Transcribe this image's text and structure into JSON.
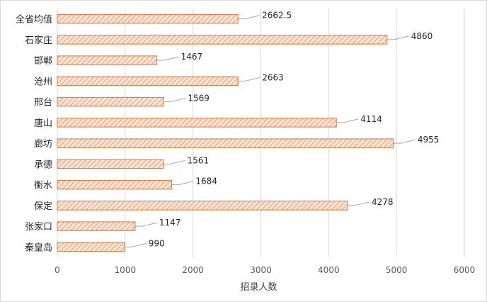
{
  "chart_data": {
    "type": "bar",
    "orientation": "horizontal",
    "categories": [
      "全省均值",
      "石家庄",
      "邯郸",
      "沧州",
      "邢台",
      "唐山",
      "廊坊",
      "承德",
      "衡水",
      "保定",
      "张家口",
      "秦皇岛"
    ],
    "values": [
      2662.5,
      4860,
      1467,
      2663,
      1569,
      4114,
      4955,
      1561,
      1684,
      4278,
      1147,
      990
    ],
    "data_labels": [
      "2662.5",
      "4860",
      "1467",
      "2663",
      "1569",
      "4114",
      "4955",
      "1561",
      "1684",
      "4278",
      "1147",
      "990"
    ],
    "xlabel": "招录人数",
    "ylabel": "",
    "xlim": [
      0,
      6000
    ],
    "x_ticks": [
      0,
      1000,
      2000,
      3000,
      4000,
      5000,
      6000
    ],
    "x_tick_labels": [
      "0",
      "1000",
      "2000",
      "3000",
      "4000",
      "5000",
      "6000"
    ],
    "grid": "vertical",
    "legend": "none",
    "colors": {
      "bar_fill": "#fbe5d6",
      "bar_hatch": "#e8a07a",
      "bar_border": "#d9773b",
      "grid": "#d9d9d9",
      "leader": "#a6a6a6"
    }
  }
}
